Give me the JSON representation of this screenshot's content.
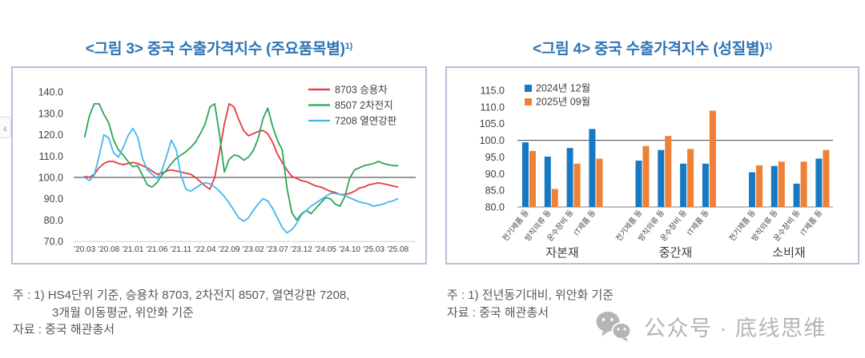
{
  "figure3": {
    "title": "<그림 3> 중국 수출가격지수 (주요품목별)",
    "title_sup": "1)",
    "note1": "주 : 1) HS4단위 기준, 승용차 8703, 2차전지 8507, 열연강판 7208,",
    "note2": "3개월 이동평균, 위안화 기준",
    "source": "자료 : 중국 해관총서"
  },
  "figure4": {
    "title": "<그림 4> 중국 수출가격지수 (성질별)",
    "title_sup": "1)",
    "note1": "주 : 1) 전년동기대비, 위안화 기준",
    "source": "자료 : 중국 해관총서"
  },
  "watermark": {
    "label": "公众号 · 底线思维"
  },
  "nav": {
    "back_chevron": "‹"
  },
  "chart_data": [
    {
      "type": "line",
      "title": "<그림 3> 중국 수출가격지수 (주요품목별)1)",
      "x_start": "2020.03",
      "x_end": "2025.08",
      "frequency": "monthly",
      "x_tick_labels": [
        "'20.03",
        "'20.08",
        "'21.01",
        "'21.06",
        "'21.11",
        "'22.04",
        "'22.09",
        "'23.02",
        "'23.07",
        "'23.12",
        "'24.05",
        "'24.10",
        "'25.03",
        "'25.08"
      ],
      "ylim": [
        70,
        140
      ],
      "y_tick_labels": [
        "140.0",
        "130.0",
        "120.0",
        "110.0",
        "100.0",
        "90.0",
        "80.0",
        "70.0"
      ],
      "reference_line": 100,
      "grid": false,
      "legend_position": "top-right",
      "series": [
        {
          "name": "8703 승용차",
          "code": "8703",
          "color": "#e8393f",
          "values": [
            100.5,
            100,
            101.5,
            104.5,
            106.5,
            107.5,
            107.5,
            106.5,
            106,
            106.5,
            107,
            106.5,
            105.5,
            104.5,
            103,
            101.5,
            102,
            103,
            103.5,
            103,
            102.5,
            102,
            101.5,
            100,
            98,
            96,
            94.5,
            100,
            112,
            125,
            134.5,
            133,
            127,
            122,
            119.5,
            120.5,
            121.5,
            122,
            120.5,
            116.5,
            111,
            107,
            103.5,
            100.5,
            99.5,
            98.5,
            98,
            97,
            96,
            95.5,
            94.5,
            93.5,
            93,
            92,
            92,
            92.5,
            93.5,
            95,
            95.5,
            96.5,
            97,
            97.5,
            97,
            96.5,
            96,
            95.5
          ]
        },
        {
          "name": "8507 2차전지",
          "code": "8507",
          "color": "#2aa757",
          "values": [
            119,
            129,
            134.5,
            134.5,
            129.5,
            125.5,
            117.5,
            113,
            110.5,
            107.5,
            105,
            105.5,
            101,
            96.5,
            95.5,
            97.5,
            101,
            103.5,
            106.5,
            109,
            110.5,
            112,
            114,
            116.5,
            120.5,
            125,
            133,
            134.5,
            120,
            102.5,
            108.5,
            110.5,
            110,
            108,
            109.5,
            112.5,
            118,
            127.5,
            132.5,
            124,
            117.5,
            113,
            95,
            83.5,
            80,
            83,
            84.5,
            83,
            85.5,
            88,
            90.5,
            90,
            87.5,
            86.5,
            91,
            99.5,
            103.5,
            104.5,
            105.5,
            106,
            106.5,
            107.5,
            106.5,
            106,
            105.5,
            105.5
          ]
        },
        {
          "name": "7208 열연강판",
          "code": "7208",
          "color": "#41b8ea",
          "values": [
            100,
            98.5,
            101,
            110,
            120,
            118.5,
            111.5,
            109.5,
            114,
            119.5,
            123,
            119,
            109,
            103.5,
            101.5,
            99.5,
            103,
            110,
            117.5,
            113,
            101,
            94.5,
            93.5,
            95,
            96.5,
            97.5,
            97,
            95.5,
            93.5,
            91,
            88,
            84.5,
            81,
            79.5,
            81,
            84.5,
            87.5,
            90,
            89,
            85.5,
            81,
            76.5,
            74,
            75.5,
            78.5,
            82.5,
            84.5,
            86.5,
            88,
            89.5,
            91,
            92.5,
            92.5,
            92,
            91.5,
            90.5,
            89.5,
            88.5,
            88,
            87.5,
            86.5,
            87,
            87.5,
            88.5,
            89,
            90
          ]
        }
      ]
    },
    {
      "type": "bar",
      "title": "<그림 4> 중국 수출가격지수 (성질별)1)",
      "groups": [
        "자본재",
        "중간재",
        "소비재"
      ],
      "categories": [
        "전기제품 등",
        "방직의류 등",
        "운수장비 등",
        "IT제품 등"
      ],
      "ylim": [
        80,
        115
      ],
      "y_tick_labels": [
        "115.0",
        "110.0",
        "105.0",
        "100.0",
        "95.0",
        "90.0",
        "85.0",
        "80.0"
      ],
      "reference_line": 100,
      "grid": false,
      "legend_position": "top-left",
      "series": [
        {
          "name": "2024년 12월",
          "color": "#1779c4",
          "values": [
            [
              99.4,
              95.1,
              97.7,
              103.4
            ],
            [
              93.9,
              97.1,
              93.0,
              93.0
            ],
            [
              90.4,
              92.3,
              87.0,
              94.5
            ]
          ]
        },
        {
          "name": "2025년 09월",
          "color": "#ef8136",
          "values": [
            [
              96.8,
              85.4,
              93.0,
              94.5
            ],
            [
              98.3,
              101.3,
              97.4,
              108.9
            ],
            [
              92.5,
              93.6,
              93.6,
              97.1
            ]
          ]
        }
      ]
    }
  ]
}
